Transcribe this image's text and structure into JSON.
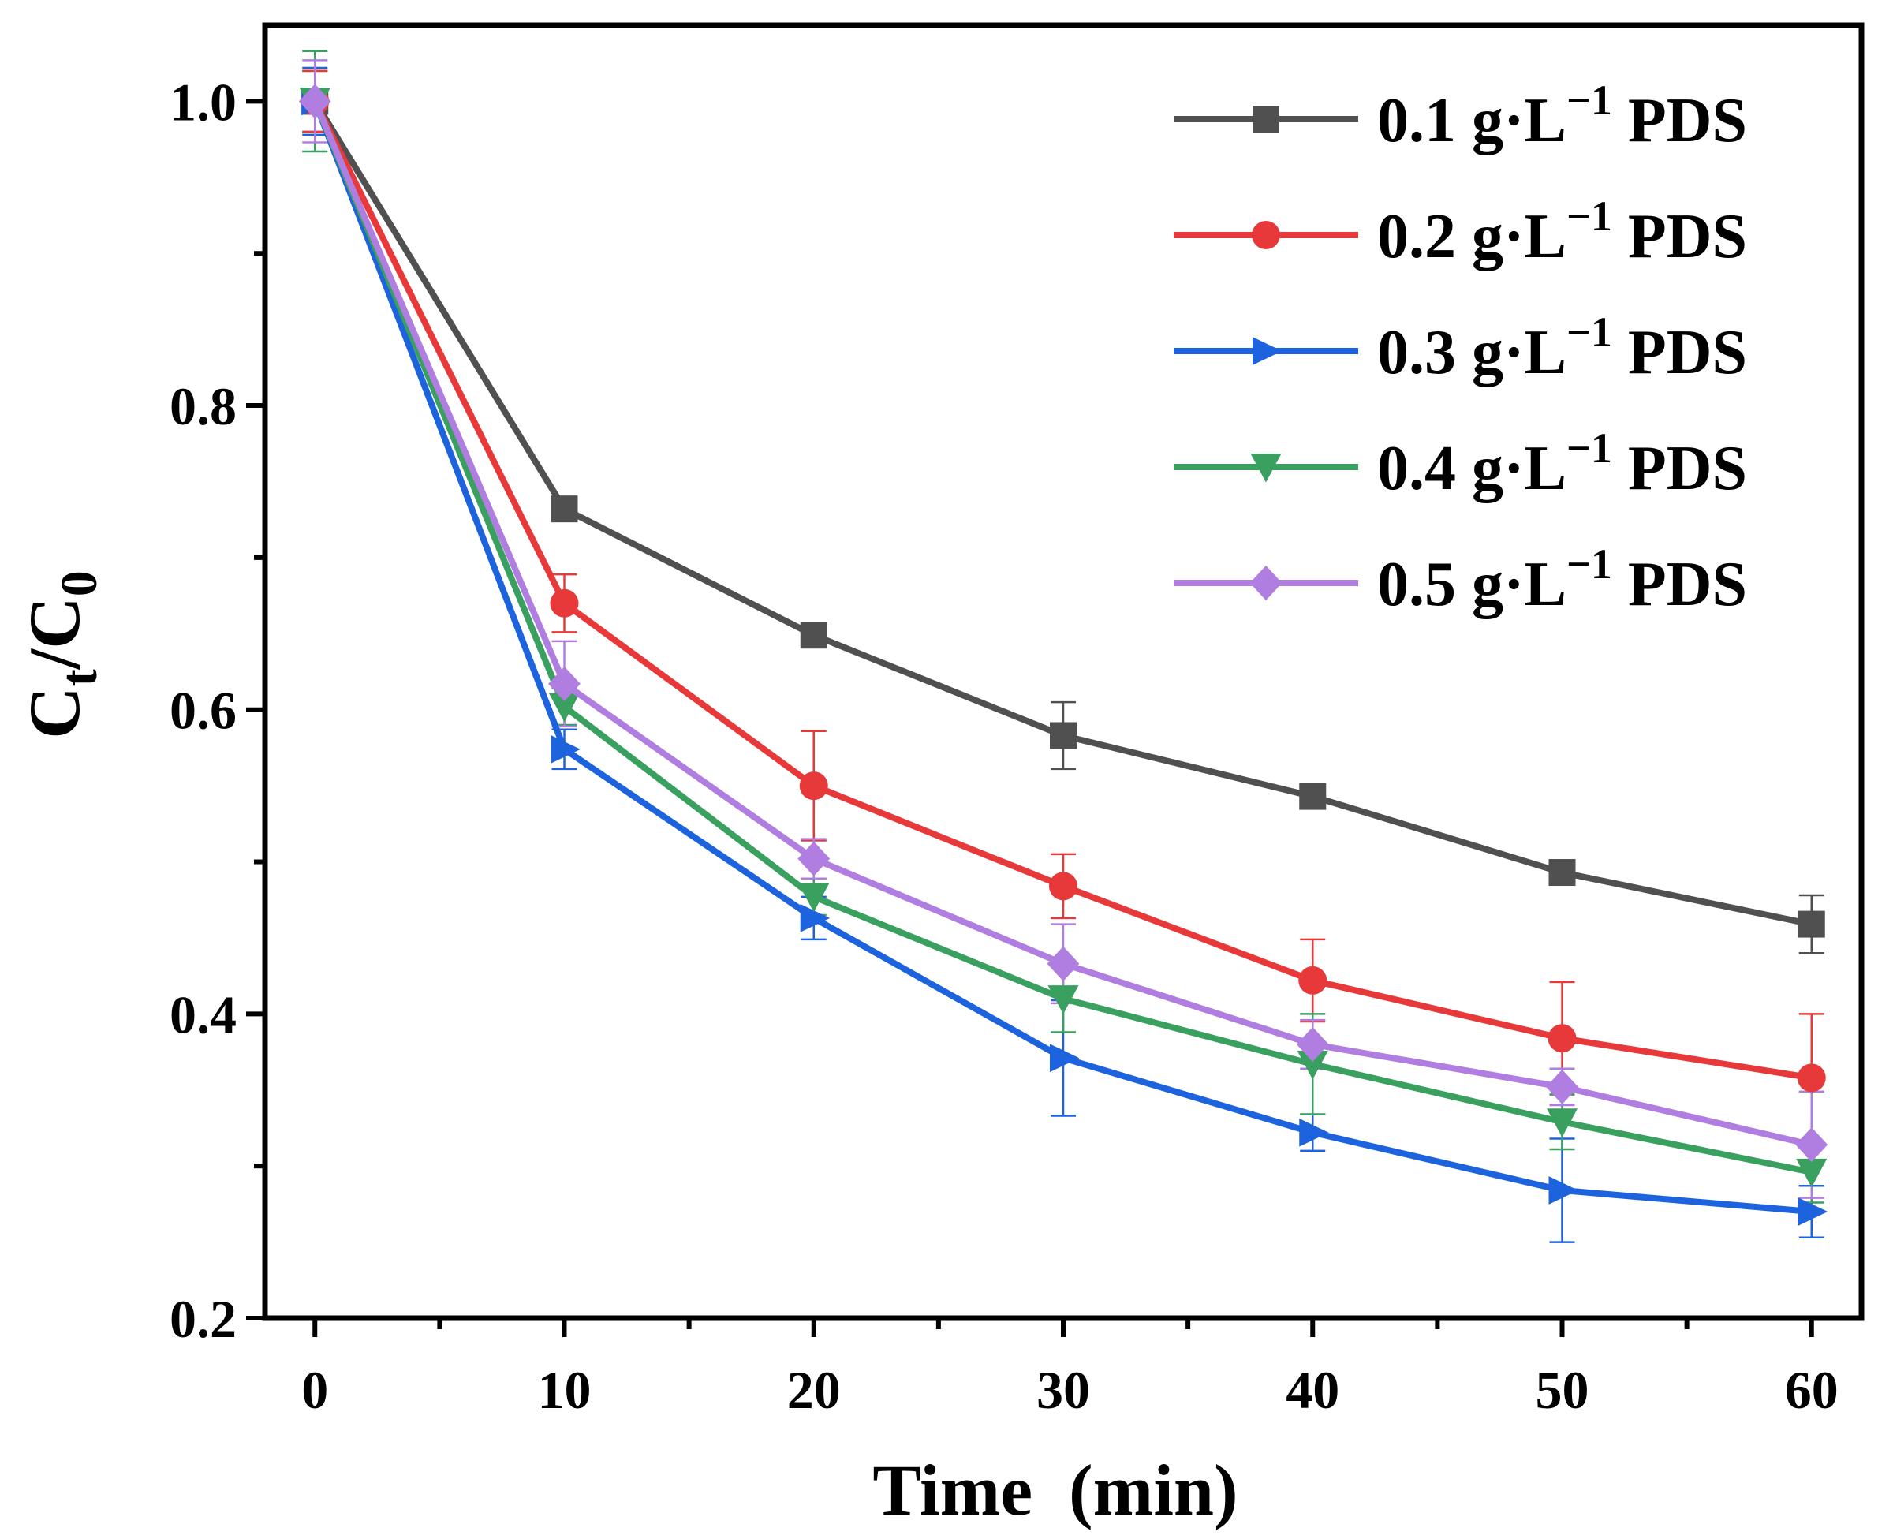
{
  "chart_data": {
    "type": "line",
    "title": "",
    "xlabel": "Time  (min)",
    "ylabel_main": "C",
    "ylabel_sub1": "t",
    "ylabel_mid": "/C",
    "ylabel_sub2": "0",
    "xlim": [
      -2,
      62
    ],
    "ylim": [
      0.2,
      1.05
    ],
    "x_ticks": [
      0,
      10,
      20,
      30,
      40,
      50,
      60
    ],
    "x_tick_labels": [
      "0",
      "10",
      "20",
      "30",
      "40",
      "50",
      "60"
    ],
    "y_ticks": [
      0.2,
      0.4,
      0.6,
      0.8,
      1.0
    ],
    "y_tick_labels": [
      "0.2",
      "0.4",
      "0.6",
      "0.8",
      "1.0"
    ],
    "legend_position": "top-right",
    "x": [
      0,
      10,
      20,
      30,
      40,
      50,
      60
    ],
    "series": [
      {
        "name": "0.1 g·L",
        "sup": "−1",
        "suffix": " PDS",
        "color": "#505050",
        "marker": "square",
        "values": [
          1.0,
          0.732,
          0.649,
          0.583,
          0.543,
          0.493,
          0.459
        ],
        "errors": [
          0.02,
          0.008,
          0.006,
          0.022,
          0.006,
          0.006,
          0.019
        ]
      },
      {
        "name": "0.2 g·L",
        "sup": "−1",
        "suffix": " PDS",
        "color": "#e8393a",
        "marker": "circle",
        "values": [
          1.0,
          0.67,
          0.55,
          0.484,
          0.422,
          0.384,
          0.358
        ],
        "errors": [
          0.02,
          0.019,
          0.036,
          0.021,
          0.027,
          0.037,
          0.042
        ]
      },
      {
        "name": "0.3 g·L",
        "sup": "−1",
        "suffix": " PDS",
        "color": "#1c63dd",
        "marker": "triangle-right",
        "values": [
          1.0,
          0.574,
          0.463,
          0.371,
          0.322,
          0.284,
          0.27
        ],
        "errors": [
          0.022,
          0.013,
          0.014,
          0.038,
          0.012,
          0.034,
          0.017
        ]
      },
      {
        "name": "0.4 g·L",
        "sup": "−1",
        "suffix": " PDS",
        "color": "#3aa060",
        "marker": "triangle-down",
        "values": [
          1.0,
          0.602,
          0.477,
          0.41,
          0.367,
          0.329,
          0.296
        ],
        "errors": [
          0.033,
          0.012,
          0.012,
          0.022,
          0.033,
          0.018,
          0.02
        ]
      },
      {
        "name": "0.5 g·L",
        "sup": "−1",
        "suffix": " PDS",
        "color": "#b07ee0",
        "marker": "diamond",
        "values": [
          1.0,
          0.617,
          0.502,
          0.433,
          0.38,
          0.352,
          0.314
        ],
        "errors": [
          0.027,
          0.028,
          0.013,
          0.026,
          0.016,
          0.012,
          0.035
        ]
      }
    ]
  }
}
